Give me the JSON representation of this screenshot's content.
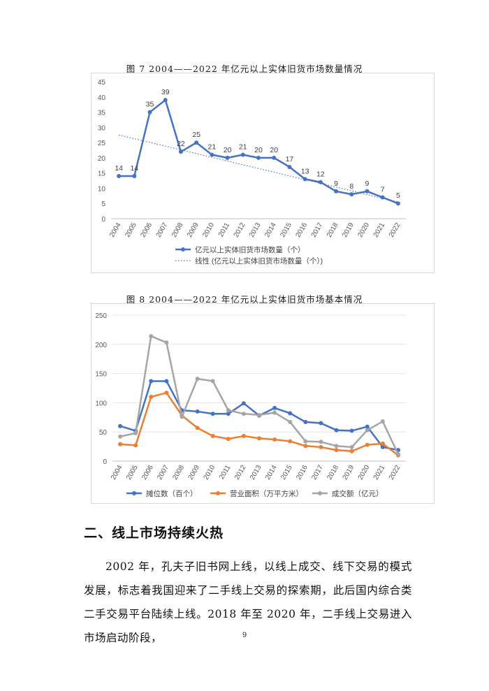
{
  "figure7": {
    "caption": "图 7   2004——2022 年亿元以上实体旧货市场数量情况"
  },
  "figure8": {
    "caption": "图 8   2004——2022 年亿元以上实体旧货市场基本情况"
  },
  "section": {
    "heading": "二、线上市场持续火热",
    "paragraph": "2002 年，孔夫子旧书网上线，以线上成交、线下交易的模式发展，标志着我国迎来了二手线上交易的探索期，此后国内综合类二手交易平台陆续上线。2018 年至 2020 年，二手线上交易进入市场启动阶段，"
  },
  "page_number": "9",
  "chart_data": [
    {
      "type": "line",
      "title": "",
      "categories": [
        "2004",
        "2005",
        "2006",
        "2007",
        "2008",
        "2009",
        "2010",
        "2011",
        "2012",
        "2013",
        "2014",
        "2015",
        "2016",
        "2017",
        "2018",
        "2019",
        "2020",
        "2021",
        "2022"
      ],
      "series": [
        {
          "name": "亿元以上实体旧货市场数量（个）",
          "values": [
            14,
            14,
            35,
            39,
            22,
            25,
            21,
            20,
            21,
            20,
            20,
            17,
            13,
            12,
            9,
            8,
            9,
            7,
            5
          ],
          "color": "#4472c4",
          "data_labels": true
        },
        {
          "name": "线性 (亿元以上实体旧货市场数量（个）)",
          "trendline": [
            27.5,
            5.5
          ],
          "color": "#4472c4",
          "style": "dotted"
        }
      ],
      "yticks": [
        "0",
        "5",
        "10",
        "15",
        "20",
        "25",
        "30",
        "35",
        "40",
        "45"
      ],
      "ylim": [
        0,
        45
      ],
      "xlabel": "",
      "ylabel": "",
      "legend_position": "bottom"
    },
    {
      "type": "line",
      "title": "",
      "categories": [
        "2004",
        "2005",
        "2006",
        "2007",
        "2008",
        "2009",
        "2010",
        "2011",
        "2012",
        "2013",
        "2014",
        "2015",
        "2016",
        "2017",
        "2018",
        "2019",
        "2020",
        "2021",
        "2022"
      ],
      "series": [
        {
          "name": "摊位数（百个）",
          "values": [
            60,
            52,
            137,
            137,
            87,
            85,
            81,
            81,
            99,
            78,
            91,
            82,
            67,
            65,
            53,
            52,
            59,
            24,
            19
          ],
          "color": "#4472c4"
        },
        {
          "name": "营业面积（万平方米）",
          "values": [
            29,
            27,
            110,
            117,
            78,
            57,
            43,
            38,
            43,
            39,
            37,
            34,
            26,
            24,
            19,
            17,
            28,
            30,
            10
          ],
          "color": "#ed7d31"
        },
        {
          "name": "成交额（亿元）",
          "values": [
            42,
            48,
            214,
            203,
            76,
            141,
            137,
            87,
            81,
            79,
            83,
            67,
            34,
            33,
            26,
            24,
            53,
            68,
            12
          ],
          "color": "#a5a5a5"
        }
      ],
      "yticks": [
        "0",
        "50",
        "100",
        "150",
        "200",
        "250"
      ],
      "ylim": [
        0,
        250
      ],
      "xlabel": "",
      "ylabel": "",
      "legend_position": "bottom"
    }
  ]
}
